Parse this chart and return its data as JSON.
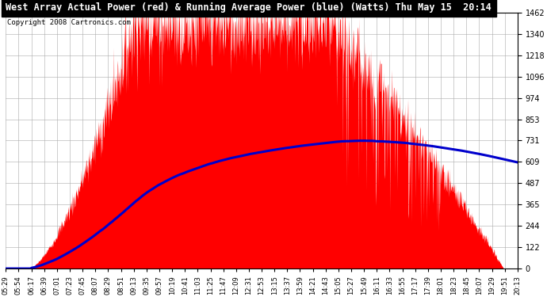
{
  "title": "West Array Actual Power (red) & Running Average Power (blue) (Watts) Thu May 15  20:14",
  "copyright": "Copyright 2008 Cartronics.com",
  "y_ticks": [
    0.0,
    121.8,
    243.6,
    365.4,
    487.2,
    609.0,
    730.8,
    852.6,
    974.4,
    1096.2,
    1218.0,
    1339.8,
    1461.6
  ],
  "ymax": 1461.6,
  "x_labels": [
    "05:29",
    "05:54",
    "06:17",
    "06:39",
    "07:01",
    "07:23",
    "07:45",
    "08:07",
    "08:29",
    "08:51",
    "09:13",
    "09:35",
    "09:57",
    "10:19",
    "10:41",
    "11:03",
    "11:25",
    "11:47",
    "12:09",
    "12:31",
    "12:53",
    "13:15",
    "13:37",
    "13:59",
    "14:21",
    "14:43",
    "15:05",
    "15:27",
    "15:49",
    "16:11",
    "16:33",
    "16:55",
    "17:17",
    "17:39",
    "18:01",
    "18:23",
    "18:45",
    "19:07",
    "19:29",
    "19:51",
    "20:13"
  ],
  "background_color": "#ffffff",
  "plot_bg_color": "#ffffff",
  "grid_color": "#aaaaaa",
  "red_color": "#ff0000",
  "blue_color": "#0000cc",
  "title_bg_color": "#000000",
  "title_text_color": "#ffffff",
  "n_points": 1500,
  "peak_power": 1380,
  "avg_peak_watts": 730,
  "noise_std": 120,
  "spike_std": 200
}
